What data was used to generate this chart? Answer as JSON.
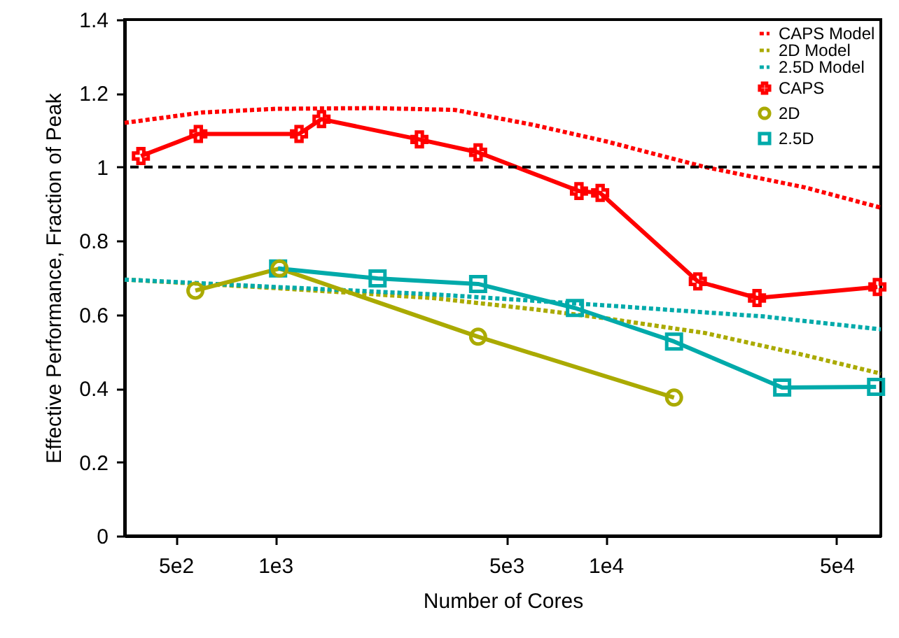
{
  "chart_data": {
    "type": "line",
    "xlabel": "Number of Cores",
    "ylabel": "Effective Performance, Fraction of Peak",
    "log": "x",
    "xlim": [
      350,
      68000
    ],
    "xticks": [
      {
        "value": 500,
        "label": "5e2"
      },
      {
        "value": 1000,
        "label": "1e3"
      },
      {
        "value": 5000,
        "label": "5e3"
      },
      {
        "value": 10000,
        "label": "1e4"
      },
      {
        "value": 50000,
        "label": "5e4"
      }
    ],
    "ylim": [
      0,
      1.4
    ],
    "yticks": [
      0,
      0.2,
      0.4,
      0.6,
      0.8,
      1,
      1.2,
      1.4
    ],
    "legend": "top right",
    "grid": false,
    "ref_lines": [
      {
        "axis": "y",
        "value": 1,
        "color": "#000000",
        "line_style": "dashed"
      }
    ],
    "series": [
      {
        "name": "CAPS Model",
        "color": "#ff0000",
        "marker": "none",
        "line_style": "dotted",
        "x": [
          350,
          600,
          1000,
          2000,
          3500,
          6000,
          10000,
          20000,
          40000,
          68000
        ],
        "values": [
          1.12,
          1.148,
          1.158,
          1.16,
          1.155,
          1.115,
          1.07,
          1.0,
          0.945,
          0.89
        ]
      },
      {
        "name": "2D Model",
        "color": "#aaaa00",
        "marker": "none",
        "line_style": "dotted",
        "x": [
          350,
          1000,
          3000,
          6000,
          10000,
          20000,
          40000,
          68000
        ],
        "values": [
          0.695,
          0.672,
          0.645,
          0.615,
          0.59,
          0.55,
          0.49,
          0.44
        ]
      },
      {
        "name": "2.5D Model",
        "color": "#00aaaa",
        "marker": "none",
        "line_style": "dotted",
        "x": [
          350,
          1000,
          3000,
          10000,
          30000,
          68000
        ],
        "values": [
          0.695,
          0.675,
          0.655,
          0.625,
          0.595,
          0.56
        ]
      },
      {
        "name": "CAPS",
        "color": "#ff0000",
        "marker": "cross",
        "line_style": "solid",
        "x": [
          392,
          585,
          1180,
          1380,
          2730,
          4110,
          8300,
          9620,
          19000,
          28700,
          66400
        ],
        "values": [
          1.03,
          1.09,
          1.09,
          1.13,
          1.075,
          1.04,
          0.935,
          0.93,
          0.69,
          0.645,
          0.675
        ]
      },
      {
        "name": "2D",
        "color": "#aaaa00",
        "marker": "circle",
        "line_style": "solid",
        "x": [
          573,
          1030,
          4110,
          16100
        ],
        "values": [
          0.665,
          0.725,
          0.54,
          0.375
        ]
      },
      {
        "name": "2.5D",
        "color": "#00aaaa",
        "marker": "square",
        "line_style": "solid",
        "x": [
          1020,
          2040,
          4110,
          8070,
          16100,
          34200,
          65800
        ],
        "values": [
          0.725,
          0.698,
          0.683,
          0.618,
          0.527,
          0.402,
          0.404
        ]
      }
    ]
  }
}
